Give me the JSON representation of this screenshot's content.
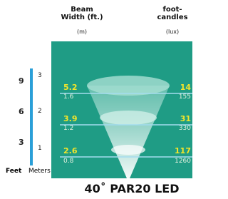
{
  "header": {
    "beam_width": "Beam Width (ft.)",
    "beam_width_unit": "(m)",
    "footcandles": "foot-candles",
    "footcandles_unit": "(lux)"
  },
  "scale": {
    "feet_label": "Feet",
    "meters_label": "Meters",
    "feet": [
      9,
      6,
      3
    ],
    "meters": [
      3,
      2,
      1
    ]
  },
  "rows": [
    {
      "width_ft": 5.2,
      "width_m": 1.6,
      "fc": 14,
      "lux": 155
    },
    {
      "width_ft": 3.9,
      "width_m": 1.2,
      "fc": 31,
      "lux": 330
    },
    {
      "width_ft": 2.6,
      "width_m": 0.8,
      "fc": 117,
      "lux": 1260
    }
  ],
  "title": "40˚ PAR20 LED"
}
